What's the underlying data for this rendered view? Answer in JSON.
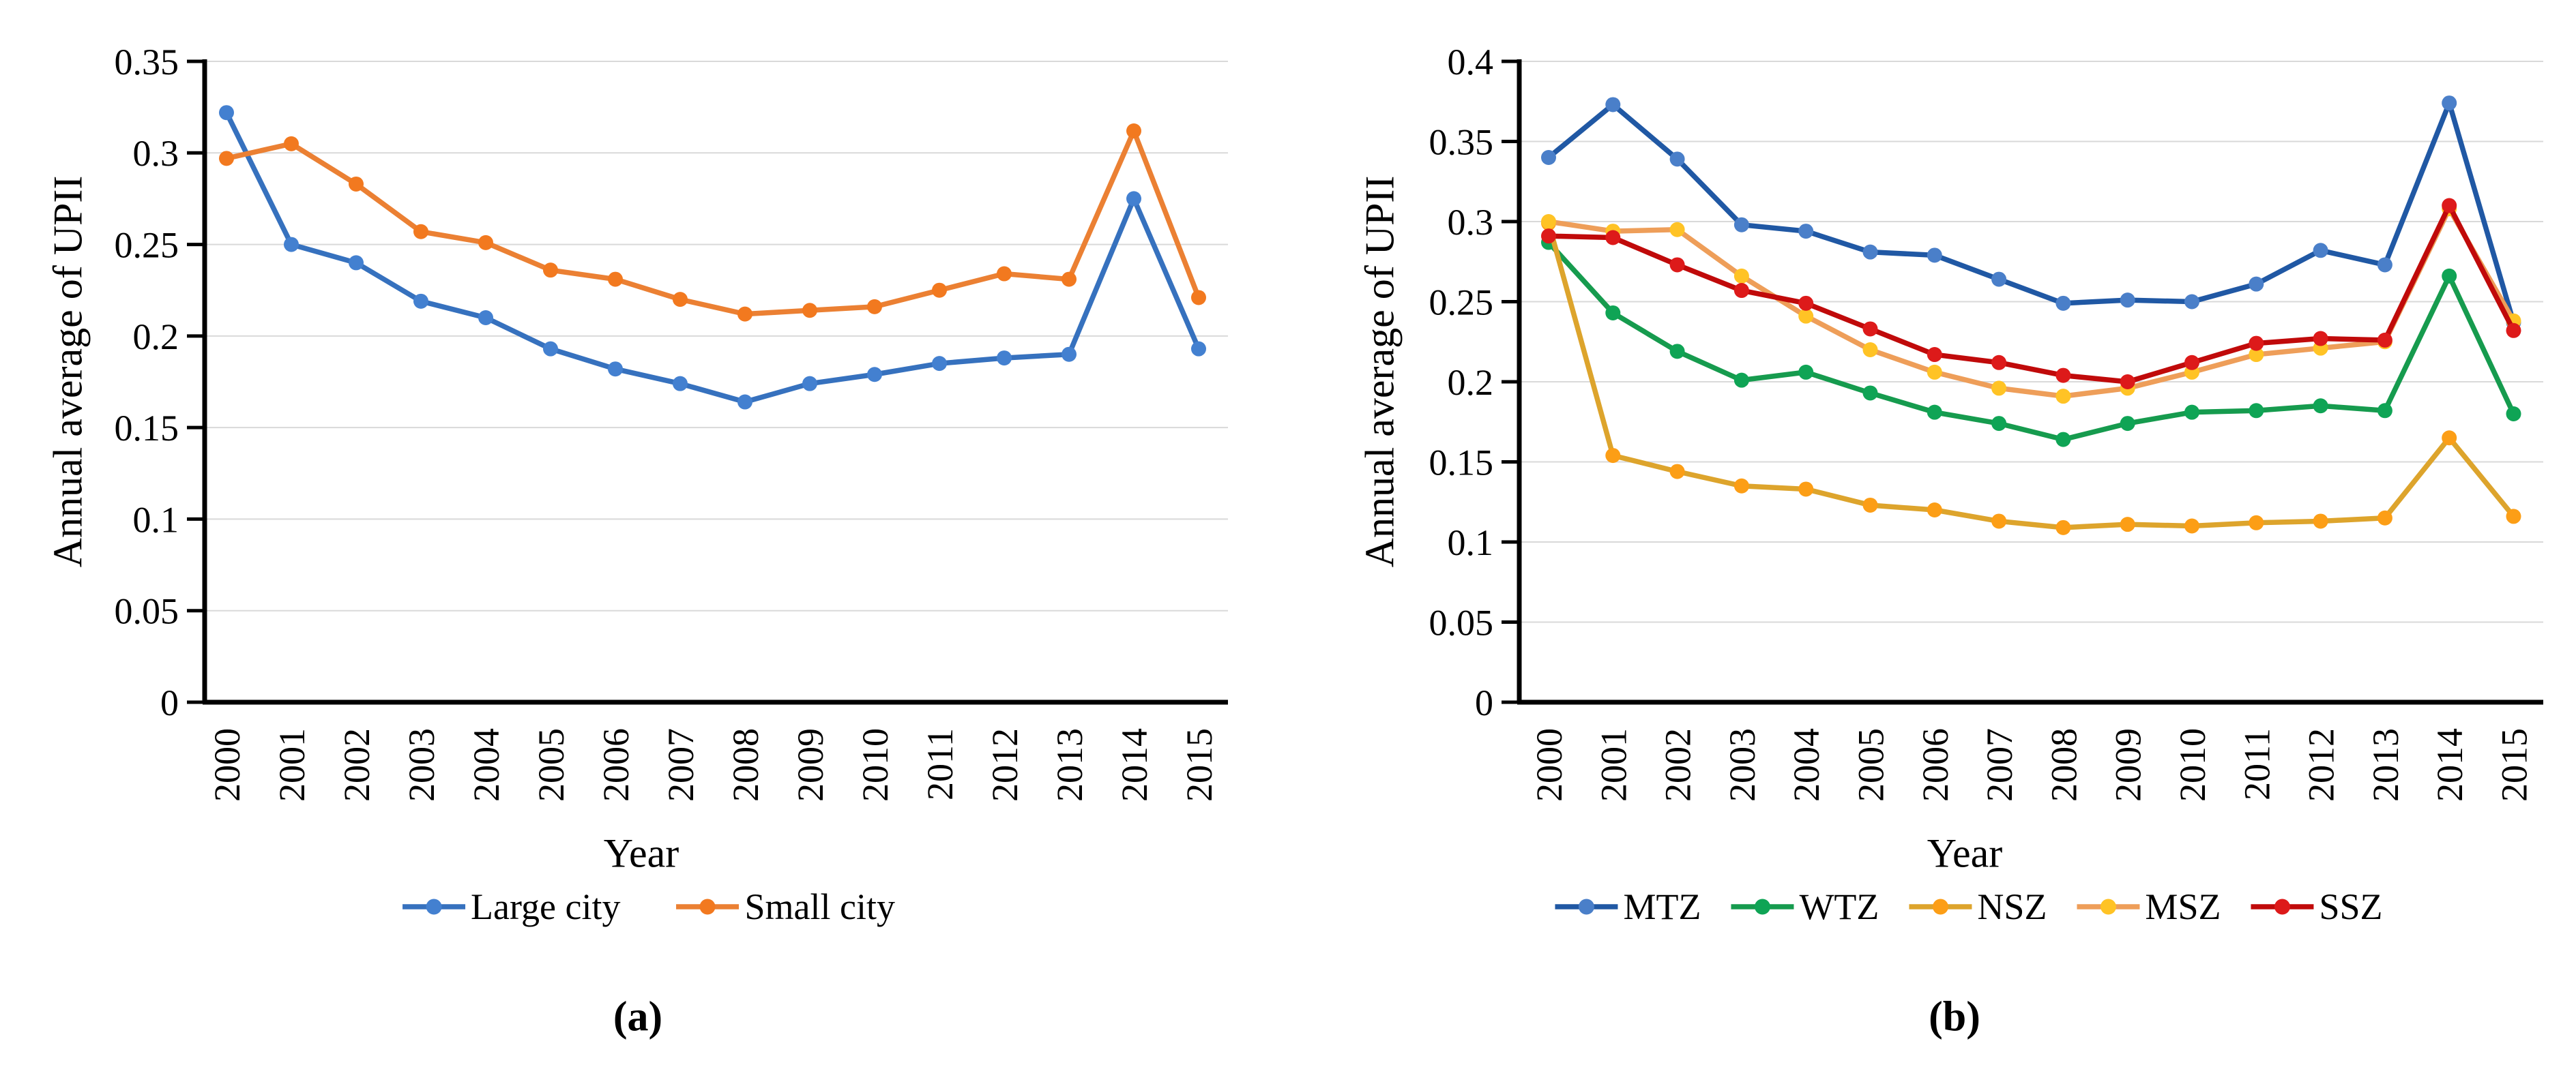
{
  "figure": {
    "captions": {
      "a": "(a)",
      "b": "(b)"
    }
  },
  "chart_data": [
    {
      "id": "a",
      "type": "line",
      "title": "",
      "xlabel": "Year",
      "ylabel": "Annual average of UPII",
      "ylim": [
        0,
        0.35
      ],
      "ytick_step": 0.05,
      "ytick_labels": [
        "0",
        "0.05",
        "0.1",
        "0.15",
        "0.2",
        "0.25",
        "0.3",
        "0.35"
      ],
      "grid": true,
      "legend_position": "bottom",
      "categories": [
        "2000",
        "2001",
        "2002",
        "2003",
        "2004",
        "2005",
        "2006",
        "2007",
        "2008",
        "2009",
        "2010",
        "2011",
        "2012",
        "2013",
        "2014",
        "2015"
      ],
      "series": [
        {
          "name": "Large city",
          "color": "#3671BE",
          "marker_color": "#4380D0",
          "values": [
            0.322,
            0.25,
            0.24,
            0.219,
            0.21,
            0.193,
            0.182,
            0.174,
            0.164,
            0.174,
            0.179,
            0.185,
            0.188,
            0.19,
            0.275,
            0.193
          ]
        },
        {
          "name": "Small city",
          "color": "#EB8033",
          "marker_color": "#F2791F",
          "values": [
            0.297,
            0.305,
            0.283,
            0.257,
            0.251,
            0.236,
            0.231,
            0.22,
            0.212,
            0.214,
            0.216,
            0.225,
            0.234,
            0.231,
            0.312,
            0.221
          ]
        }
      ]
    },
    {
      "id": "b",
      "type": "line",
      "title": "",
      "xlabel": "Year",
      "ylabel": "Annual average of UPII",
      "ylim": [
        0,
        0.4
      ],
      "ytick_step": 0.05,
      "ytick_labels": [
        "0",
        "0.05",
        "0.1",
        "0.15",
        "0.2",
        "0.25",
        "0.3",
        "0.35",
        "0.4"
      ],
      "grid": true,
      "legend_position": "bottom",
      "categories": [
        "2000",
        "2001",
        "2002",
        "2003",
        "2004",
        "2005",
        "2006",
        "2007",
        "2008",
        "2009",
        "2010",
        "2011",
        "2012",
        "2013",
        "2014",
        "2015"
      ],
      "series": [
        {
          "name": "MTZ",
          "color": "#2058A4",
          "marker_color": "#4A7FC9",
          "values": [
            0.34,
            0.373,
            0.339,
            0.298,
            0.294,
            0.281,
            0.279,
            0.264,
            0.249,
            0.251,
            0.25,
            0.261,
            0.282,
            0.273,
            0.374,
            0.237
          ]
        },
        {
          "name": "WTZ",
          "color": "#169B4E",
          "marker_color": "#0FA455",
          "values": [
            0.287,
            0.243,
            0.219,
            0.201,
            0.206,
            0.193,
            0.181,
            0.174,
            0.164,
            0.174,
            0.181,
            0.182,
            0.185,
            0.182,
            0.266,
            0.18
          ]
        },
        {
          "name": "NSZ",
          "color": "#DDA42C",
          "marker_color": "#FC9E16",
          "values": [
            0.299,
            0.154,
            0.144,
            0.135,
            0.133,
            0.123,
            0.12,
            0.113,
            0.109,
            0.111,
            0.11,
            0.112,
            0.113,
            0.115,
            0.165,
            0.116
          ]
        },
        {
          "name": "MSZ",
          "color": "#EE9E59",
          "marker_color": "#FFC325",
          "values": [
            0.3,
            0.294,
            0.295,
            0.266,
            0.241,
            0.22,
            0.206,
            0.196,
            0.191,
            0.196,
            0.206,
            0.217,
            0.221,
            0.225,
            0.308,
            0.238
          ]
        },
        {
          "name": "SSZ",
          "color": "#C00A0A",
          "marker_color": "#DD1A1A",
          "values": [
            0.291,
            0.29,
            0.273,
            0.257,
            0.249,
            0.233,
            0.217,
            0.212,
            0.204,
            0.2,
            0.212,
            0.224,
            0.227,
            0.226,
            0.31,
            0.232
          ]
        }
      ]
    }
  ]
}
